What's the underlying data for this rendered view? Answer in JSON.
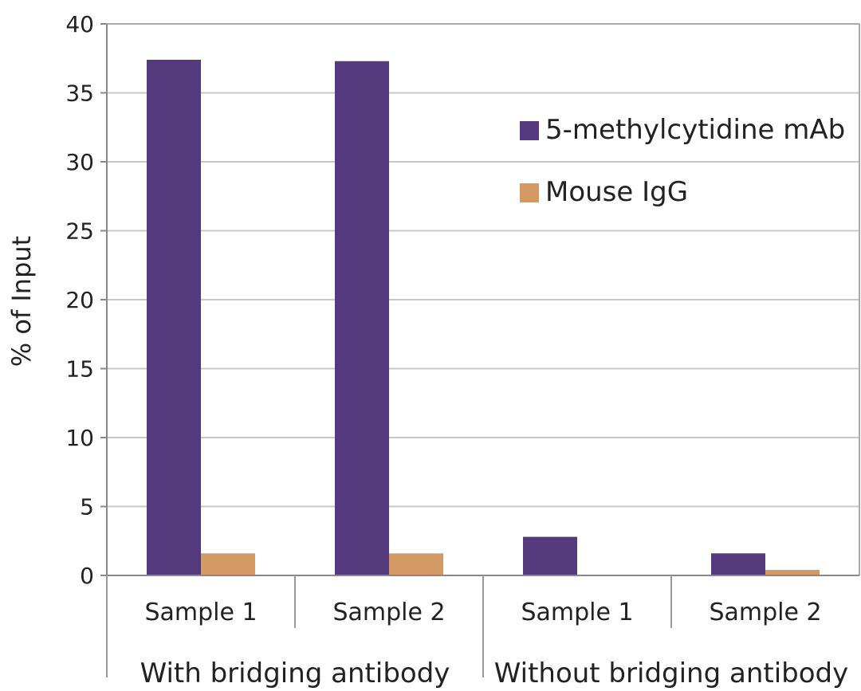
{
  "chart_data": {
    "type": "bar",
    "title": "",
    "xlabel": "",
    "ylabel": "% of Input",
    "ylim": [
      0,
      40
    ],
    "yticks": [
      0,
      5,
      10,
      15,
      20,
      25,
      30,
      35,
      40
    ],
    "grid": true,
    "legend_position": "top-right",
    "groups": [
      {
        "label": "With bridging antibody",
        "categories": [
          "Sample 1",
          "Sample 2"
        ]
      },
      {
        "label": "Without bridging antibody",
        "categories": [
          "Sample 1",
          "Sample 2"
        ]
      }
    ],
    "series": [
      {
        "name": "5-methylcytidine mAb",
        "color": "#543a7c",
        "values": [
          37.4,
          37.3,
          2.8,
          1.6
        ]
      },
      {
        "name": "Mouse IgG",
        "color": "#d39a66",
        "values": [
          1.6,
          1.6,
          0.0,
          0.4
        ]
      }
    ]
  }
}
